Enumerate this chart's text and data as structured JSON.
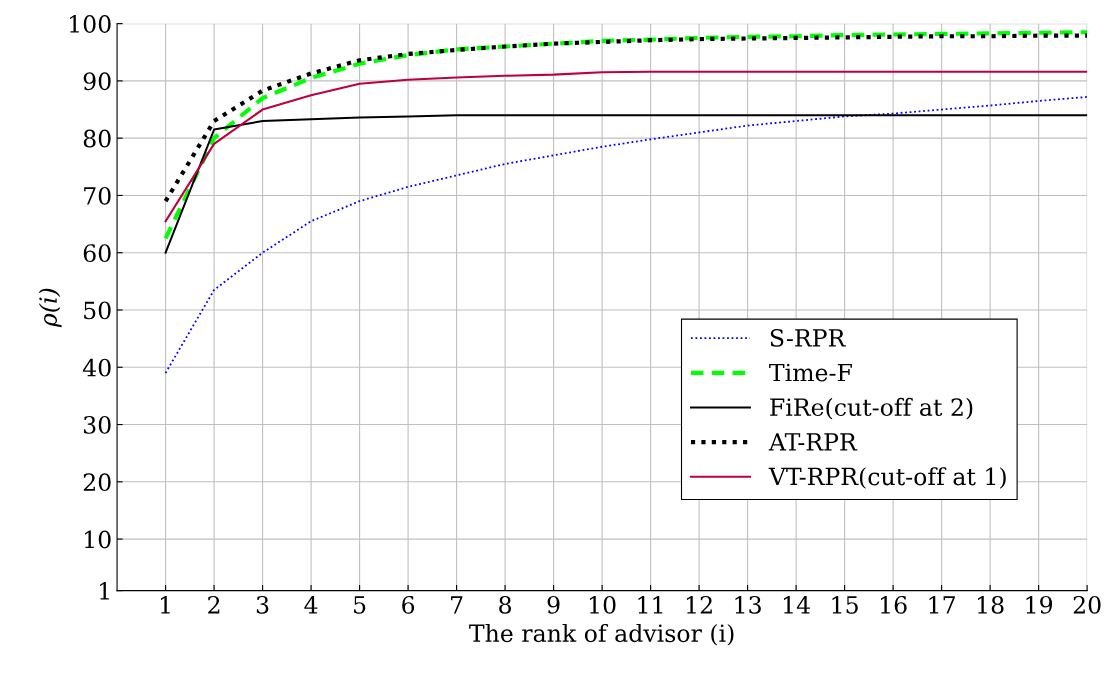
{
  "chart_data": {
    "type": "line",
    "xlabel": "The rank of advisor (i)",
    "ylabel": "ρ(i)",
    "x": [
      1,
      2,
      3,
      4,
      5,
      6,
      7,
      8,
      9,
      10,
      11,
      12,
      13,
      14,
      15,
      16,
      17,
      18,
      19,
      20
    ],
    "xlim": [
      0,
      20
    ],
    "xticks": [
      1,
      2,
      3,
      4,
      5,
      6,
      7,
      8,
      9,
      10,
      11,
      12,
      13,
      14,
      15,
      16,
      17,
      18,
      19,
      20
    ],
    "ylim": [
      1,
      100
    ],
    "yticks": [
      1,
      10,
      20,
      30,
      40,
      50,
      60,
      70,
      80,
      90,
      100
    ],
    "grid": true,
    "legend": "bottom right",
    "marker": "none",
    "series": [
      {
        "name": "S-RPR",
        "color": "#0000ff",
        "line_style": "dotted",
        "values": [
          39,
          53.5,
          60,
          65.5,
          69,
          71.5,
          73.5,
          75.5,
          77,
          78.5,
          79.8,
          81,
          82.2,
          83,
          83.8,
          84.3,
          85,
          85.7,
          86.5,
          87.2
        ]
      },
      {
        "name": "Time-F",
        "color": "#00ff00",
        "line_style": "dashed",
        "values": [
          62.5,
          80,
          87,
          90.5,
          93,
          94.5,
          95.5,
          96,
          96.5,
          97,
          97.2,
          97.5,
          97.7,
          97.8,
          98,
          98.1,
          98.2,
          98.3,
          98.4,
          98.5
        ]
      },
      {
        "name": "FiRe(cut-off at 2)",
        "color": "#000000",
        "line_style": "solid",
        "values": [
          60,
          81.5,
          83,
          83.3,
          83.6,
          83.8,
          84,
          84,
          84,
          84,
          84,
          84,
          84,
          84,
          84,
          84,
          84,
          84,
          84,
          84
        ]
      },
      {
        "name": "AT-RPR",
        "color": "#000000",
        "line_style": "dotted",
        "values": [
          69,
          83,
          88.3,
          91.3,
          93.6,
          94.7,
          95.4,
          96,
          96.5,
          96.8,
          97.1,
          97.3,
          97.4,
          97.5,
          97.6,
          97.7,
          97.8,
          97.8,
          97.9,
          97.9
        ]
      },
      {
        "name": "VT-RPR(cut-off at 1)",
        "color": "#bf0040",
        "line_style": "solid",
        "values": [
          65.5,
          79,
          85,
          87.5,
          89.5,
          90.2,
          90.6,
          90.9,
          91.1,
          91.5,
          91.6,
          91.6,
          91.6,
          91.6,
          91.6,
          91.6,
          91.6,
          91.6,
          91.6,
          91.6
        ]
      }
    ]
  }
}
